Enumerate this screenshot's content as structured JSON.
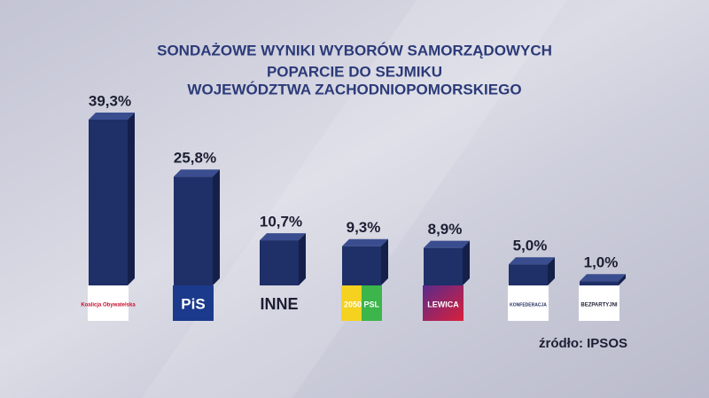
{
  "chart_data": {
    "type": "bar",
    "title": "SONDAŻOWE WYNIKI WYBORÓW SAMORZĄDOWYCH",
    "subtitle": [
      "POPARCIE DO SEJMIKU",
      "WOJEWÓDZTWA ZACHODNIOPOMORSKIEGO"
    ],
    "categories": [
      "Koalicja Obywatelska",
      "PiS",
      "INNE",
      "2050 PSL",
      "LEWICA",
      "KONFEDERACJA",
      "BEZPARTYJNI"
    ],
    "values": [
      39.3,
      25.8,
      10.7,
      9.3,
      8.9,
      5.0,
      1.0
    ],
    "value_labels": [
      "39,3%",
      "25,8%",
      "10,7%",
      "9,3%",
      "8,9%",
      "5,0%",
      "1,0%"
    ],
    "color": "#1f2f68",
    "source": "źródło: IPSOS"
  }
}
